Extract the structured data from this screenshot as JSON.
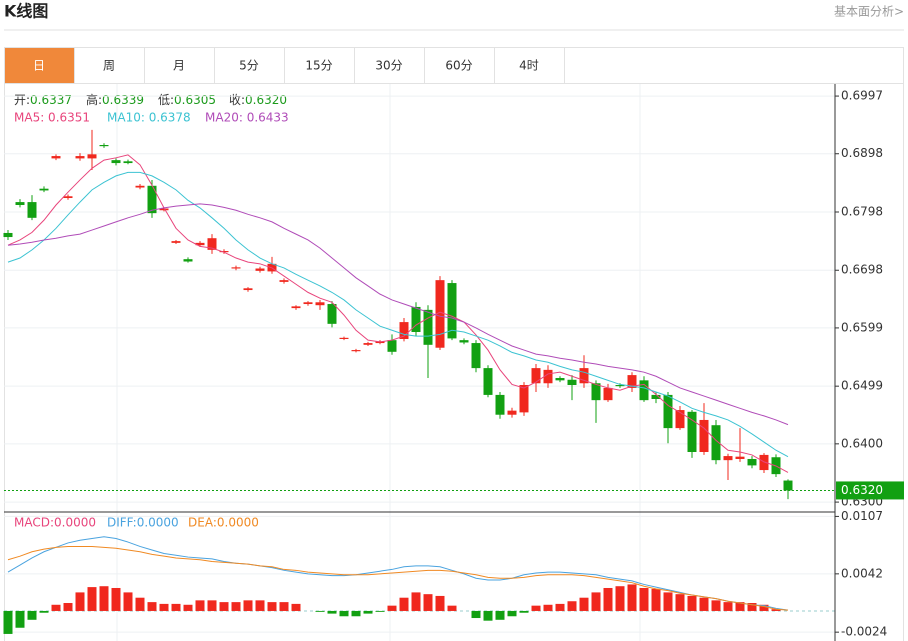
{
  "header": {
    "title": "K线图",
    "link": "基本面分析>"
  },
  "tabs": [
    "日",
    "周",
    "月",
    "5分",
    "15分",
    "30分",
    "60分",
    "4时"
  ],
  "active_tab": 0,
  "info": [
    {
      "label": "开:",
      "value": "0.6337"
    },
    {
      "label": "高:",
      "value": "0.6339"
    },
    {
      "label": "低:",
      "value": "0.6305"
    },
    {
      "label": "收:",
      "value": "0.6320"
    }
  ],
  "chart_data": [
    {
      "type": "candlestick",
      "ylim": [
        0.6283,
        0.7016
      ],
      "yticks": [
        0.6997,
        0.6898,
        0.6798,
        0.6698,
        0.6599,
        0.6499,
        {
          "value": 0.64,
          "label": "0.6400"
        },
        {
          "value": 0.63,
          "label": "0.6300"
        }
      ],
      "last_price": {
        "value": 0.632,
        "label": "0.6320"
      },
      "up_color": "#f0281e",
      "down_color": "#12a012",
      "grid": true,
      "open": [
        0.6762,
        0.6815,
        0.6815,
        0.6838,
        0.689,
        0.6822,
        0.689,
        0.689,
        0.6913,
        0.6887,
        0.6885,
        0.684,
        0.6843,
        0.6801,
        0.6745,
        0.6717,
        0.6741,
        0.6733,
        0.6729,
        0.6701,
        0.6664,
        0.6697,
        0.6696,
        0.6678,
        0.6633,
        0.664,
        0.6638,
        0.664,
        0.658,
        0.6559,
        0.657,
        0.6573,
        0.6578,
        0.658,
        0.6635,
        0.663,
        0.6565,
        0.6676,
        0.6578,
        0.6573,
        0.653,
        0.6484,
        0.645,
        0.6454,
        0.6504,
        0.6504,
        0.6513,
        0.651,
        0.6504,
        0.6504,
        0.6475,
        0.6501,
        0.6496,
        0.6509,
        0.6484,
        0.6484,
        0.6427,
        0.6455,
        0.6386,
        0.6432,
        0.6372,
        0.6374,
        0.6374,
        0.6355,
        0.6377,
        0.6337
      ],
      "high": [
        0.6767,
        0.682,
        0.6827,
        0.6842,
        0.6897,
        0.6828,
        0.6899,
        0.6939,
        0.6916,
        0.689,
        0.6888,
        0.6846,
        0.6853,
        0.6806,
        0.675,
        0.672,
        0.6748,
        0.676,
        0.6734,
        0.6706,
        0.6669,
        0.6704,
        0.6721,
        0.6684,
        0.6638,
        0.6645,
        0.6647,
        0.6645,
        0.6584,
        0.6563,
        0.6575,
        0.6578,
        0.6588,
        0.6616,
        0.6643,
        0.6638,
        0.6688,
        0.6681,
        0.6581,
        0.6578,
        0.6535,
        0.6489,
        0.6462,
        0.6506,
        0.6537,
        0.6535,
        0.6516,
        0.6518,
        0.6552,
        0.6509,
        0.6503,
        0.6504,
        0.6523,
        0.6516,
        0.6489,
        0.6489,
        0.6465,
        0.6458,
        0.647,
        0.6441,
        0.6383,
        0.6427,
        0.6379,
        0.6384,
        0.6382,
        0.6339
      ],
      "low": [
        0.675,
        0.6806,
        0.6784,
        0.6832,
        0.6887,
        0.6819,
        0.6886,
        0.687,
        0.6908,
        0.6878,
        0.688,
        0.6837,
        0.6788,
        0.6799,
        0.6743,
        0.6711,
        0.6738,
        0.6726,
        0.6726,
        0.6698,
        0.6661,
        0.6694,
        0.6692,
        0.6675,
        0.663,
        0.6637,
        0.663,
        0.66,
        0.6578,
        0.6557,
        0.6568,
        0.6571,
        0.6553,
        0.6576,
        0.6585,
        0.6513,
        0.6561,
        0.6578,
        0.6571,
        0.6523,
        0.648,
        0.6443,
        0.6445,
        0.6448,
        0.6489,
        0.6496,
        0.6506,
        0.6475,
        0.6496,
        0.6436,
        0.6472,
        0.6496,
        0.6489,
        0.6472,
        0.647,
        0.6401,
        0.6424,
        0.6376,
        0.6381,
        0.6365,
        0.6338,
        0.6369,
        0.6358,
        0.635,
        0.6343,
        0.6305
      ],
      "close": [
        0.6755,
        0.681,
        0.6788,
        0.6835,
        0.6894,
        0.6825,
        0.6894,
        0.6897,
        0.6911,
        0.6882,
        0.6882,
        0.6843,
        0.6796,
        0.6804,
        0.6748,
        0.6713,
        0.6745,
        0.6753,
        0.6731,
        0.6703,
        0.6667,
        0.6701,
        0.6709,
        0.6681,
        0.6636,
        0.6643,
        0.6643,
        0.6606,
        0.6582,
        0.6561,
        0.6573,
        0.6576,
        0.6558,
        0.6609,
        0.6592,
        0.657,
        0.6681,
        0.6581,
        0.6574,
        0.653,
        0.6484,
        0.645,
        0.6457,
        0.6501,
        0.653,
        0.6527,
        0.6509,
        0.6501,
        0.653,
        0.6475,
        0.6496,
        0.6499,
        0.6518,
        0.6475,
        0.6477,
        0.6427,
        0.6458,
        0.6386,
        0.6441,
        0.6372,
        0.6379,
        0.6378,
        0.6363,
        0.6381,
        0.6348,
        0.632
      ],
      "series": [
        {
          "name": "MA5: 0.6351",
          "color": "#e8457c",
          "values": [
            0.6741,
            0.675,
            0.6763,
            0.6784,
            0.681,
            0.6832,
            0.6853,
            0.6873,
            0.6887,
            0.6891,
            0.6896,
            0.6879,
            0.6844,
            0.6805,
            0.677,
            0.675,
            0.6739,
            0.6736,
            0.6729,
            0.6719,
            0.6712,
            0.6709,
            0.6702,
            0.6688,
            0.6674,
            0.666,
            0.665,
            0.6643,
            0.6621,
            0.6595,
            0.6578,
            0.6575,
            0.6578,
            0.6585,
            0.6604,
            0.6616,
            0.6626,
            0.6619,
            0.6609,
            0.6587,
            0.6561,
            0.6527,
            0.6502,
            0.6496,
            0.6506,
            0.652,
            0.6523,
            0.6516,
            0.6509,
            0.6502,
            0.6496,
            0.6492,
            0.6499,
            0.6502,
            0.6485,
            0.6466,
            0.6454,
            0.6441,
            0.6427,
            0.6406,
            0.6389,
            0.6386,
            0.6381,
            0.6369,
            0.6362,
            0.6351
          ]
        },
        {
          "name": "MA10: 0.6378",
          "color": "#3cc3d2",
          "values": [
            0.6712,
            0.6719,
            0.6733,
            0.675,
            0.677,
            0.6793,
            0.6815,
            0.6836,
            0.6849,
            0.686,
            0.6866,
            0.6866,
            0.686,
            0.6849,
            0.6836,
            0.6818,
            0.6805,
            0.6788,
            0.677,
            0.675,
            0.6733,
            0.6719,
            0.6709,
            0.6702,
            0.6691,
            0.6681,
            0.6671,
            0.666,
            0.6647,
            0.663,
            0.6616,
            0.6602,
            0.6595,
            0.6588,
            0.6585,
            0.6585,
            0.6588,
            0.6595,
            0.6592,
            0.6585,
            0.6578,
            0.6568,
            0.6557,
            0.6551,
            0.6544,
            0.654,
            0.6533,
            0.6527,
            0.6523,
            0.6516,
            0.6509,
            0.6502,
            0.6499,
            0.6496,
            0.6489,
            0.6482,
            0.6472,
            0.6461,
            0.6454,
            0.6448,
            0.6441,
            0.643,
            0.6417,
            0.6403,
            0.6389,
            0.6378
          ]
        },
        {
          "name": "MA20: 0.6433",
          "color": "#b04cb8",
          "values": [
            0.6741,
            0.6743,
            0.6746,
            0.675,
            0.6753,
            0.6757,
            0.676,
            0.6767,
            0.6774,
            0.6781,
            0.6788,
            0.6794,
            0.6801,
            0.6805,
            0.6808,
            0.681,
            0.6812,
            0.681,
            0.6806,
            0.6801,
            0.6794,
            0.6788,
            0.6781,
            0.677,
            0.676,
            0.675,
            0.6736,
            0.6719,
            0.6702,
            0.6685,
            0.6671,
            0.6657,
            0.6647,
            0.664,
            0.6633,
            0.6626,
            0.6619,
            0.6616,
            0.6609,
            0.6599,
            0.6588,
            0.6578,
            0.6568,
            0.6561,
            0.6554,
            0.6551,
            0.6547,
            0.6544,
            0.654,
            0.6537,
            0.6533,
            0.653,
            0.6527,
            0.6523,
            0.6516,
            0.6506,
            0.6496,
            0.6489,
            0.6482,
            0.6475,
            0.6468,
            0.6461,
            0.6454,
            0.6448,
            0.6441,
            0.6433
          ]
        }
      ]
    },
    {
      "type": "macd",
      "ylim": [
        -0.0034,
        0.0112
      ],
      "yticks": [
        0.0107,
        0.0042,
        -0.0024
      ],
      "histogram": {
        "name": "MACD:0.0000",
        "color": "#e8457c",
        "up_color": "#f0281e",
        "down_color": "#12a012",
        "values": [
          -0.0026,
          -0.0019,
          -0.001,
          -0.0002,
          0.0007,
          0.0009,
          0.0021,
          0.0027,
          0.0028,
          0.0026,
          0.0021,
          0.0015,
          0.001,
          0.0008,
          0.0008,
          0.0007,
          0.0012,
          0.0012,
          0.001,
          0.001,
          0.0012,
          0.0012,
          0.001,
          0.001,
          0.0008,
          0,
          -0.0001,
          -0.0003,
          -0.0006,
          -0.0006,
          -0.0003,
          -0.0001,
          0.0006,
          0.0015,
          0.0021,
          0.0019,
          0.0017,
          0.0006,
          0,
          -0.0008,
          -0.0011,
          -0.001,
          -0.0006,
          -0.0002,
          0.0006,
          0.0007,
          0.0008,
          0.0011,
          0.0015,
          0.0021,
          0.0026,
          0.0028,
          0.003,
          0.0026,
          0.0025,
          0.0021,
          0.0019,
          0.0017,
          0.0015,
          0.0012,
          0.001,
          0.001,
          0.0009,
          0.0007,
          0.0002,
          0
        ]
      },
      "series": [
        {
          "name": "DIFF:0.0000",
          "color": "#4aa3df",
          "values": [
            0.0044,
            0.0052,
            0.006,
            0.0067,
            0.0072,
            0.0077,
            0.008,
            0.0082,
            0.0084,
            0.0082,
            0.0078,
            0.0073,
            0.0069,
            0.0065,
            0.0063,
            0.0061,
            0.006,
            0.0059,
            0.0056,
            0.0054,
            0.0053,
            0.0051,
            0.0049,
            0.0046,
            0.0044,
            0.0042,
            0.0041,
            0.004,
            0.004,
            0.0041,
            0.0043,
            0.0045,
            0.0047,
            0.005,
            0.0051,
            0.0051,
            0.005,
            0.0046,
            0.0042,
            0.0037,
            0.0035,
            0.0035,
            0.0037,
            0.0041,
            0.0043,
            0.0044,
            0.0044,
            0.0043,
            0.0042,
            0.0041,
            0.0038,
            0.0036,
            0.0034,
            0.003,
            0.0027,
            0.0024,
            0.0021,
            0.0018,
            0.0016,
            0.0014,
            0.0011,
            0.0009,
            0.0007,
            0.0006,
            0.0003,
            0.0001
          ]
        },
        {
          "name": "DEA:0.0000",
          "color": "#f08a24",
          "values": [
            0.0058,
            0.0062,
            0.0067,
            0.007,
            0.0072,
            0.0073,
            0.0073,
            0.0073,
            0.0072,
            0.0071,
            0.0069,
            0.0067,
            0.0064,
            0.0062,
            0.006,
            0.0059,
            0.0058,
            0.0056,
            0.0055,
            0.0054,
            0.0053,
            0.0051,
            0.005,
            0.0047,
            0.0046,
            0.0044,
            0.0043,
            0.0042,
            0.0041,
            0.0041,
            0.0041,
            0.0042,
            0.0043,
            0.0044,
            0.0045,
            0.0046,
            0.0046,
            0.0045,
            0.0043,
            0.0041,
            0.0038,
            0.0037,
            0.0037,
            0.0038,
            0.004,
            0.0041,
            0.0041,
            0.0041,
            0.004,
            0.0038,
            0.0036,
            0.0034,
            0.0032,
            0.0028,
            0.0025,
            0.0023,
            0.002,
            0.0018,
            0.0016,
            0.0014,
            0.0011,
            0.0009,
            0.0007,
            0.0005,
            0.0002,
            0.0001
          ]
        }
      ]
    }
  ]
}
